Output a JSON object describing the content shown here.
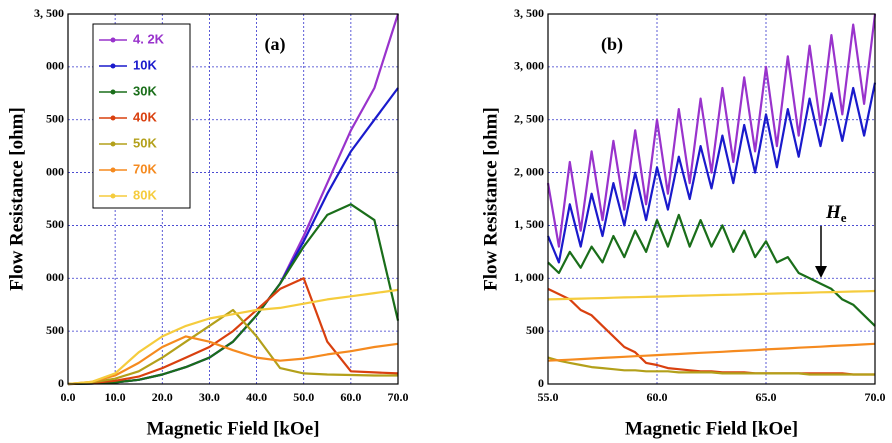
{
  "chart_data": [
    {
      "type": "line",
      "title": "(a)",
      "x_label": "Magnetic Field [kOe]",
      "y_label": "Flow Resistance [ohm]",
      "xlim": [
        0,
        70
      ],
      "ylim": [
        0,
        3500
      ],
      "grid": true,
      "legend": "upper left",
      "xticks": [
        {
          "value": 0,
          "label": "0.0"
        },
        {
          "value": 10,
          "label": "10.0"
        },
        {
          "value": 20,
          "label": "20.0"
        },
        {
          "value": 30,
          "label": "30.0"
        },
        {
          "value": 40,
          "label": "40.0"
        },
        {
          "value": 50,
          "label": "50.0"
        },
        {
          "value": 60,
          "label": "60.0"
        },
        {
          "value": 70,
          "label": "70.0"
        }
      ],
      "yticks": [
        0,
        500,
        {
          "value": 1000,
          "label": "000"
        },
        {
          "value": 1500,
          "label": "500"
        },
        {
          "value": 2000,
          "label": "000"
        },
        {
          "value": 2500,
          "label": "500"
        },
        {
          "value": 3000,
          "label": "000"
        },
        {
          "value": 3500,
          "label": "3, 500"
        }
      ],
      "x": [
        0,
        5,
        10,
        15,
        20,
        25,
        30,
        35,
        40,
        45,
        50,
        55,
        60,
        65,
        70
      ],
      "series": [
        {
          "name": "4. 2K",
          "color": "#9933cc",
          "values": [
            0,
            5,
            15,
            40,
            90,
            160,
            250,
            400,
            650,
            950,
            1400,
            1900,
            2400,
            2800,
            3500
          ]
        },
        {
          "name": "10K",
          "color": "#1a1acc",
          "values": [
            0,
            5,
            15,
            40,
            90,
            160,
            250,
            400,
            650,
            950,
            1350,
            1800,
            2200,
            2500,
            2800
          ]
        },
        {
          "name": "30K",
          "color": "#1a6e1a",
          "values": [
            0,
            5,
            15,
            40,
            90,
            160,
            250,
            400,
            650,
            950,
            1300,
            1600,
            1700,
            1550,
            600
          ]
        },
        {
          "name": "40K",
          "color": "#d9400f",
          "values": [
            0,
            10,
            30,
            70,
            150,
            250,
            350,
            500,
            700,
            900,
            1000,
            400,
            120,
            110,
            100
          ]
        },
        {
          "name": "50K",
          "color": "#b3a01a",
          "values": [
            0,
            15,
            50,
            120,
            250,
            400,
            550,
            700,
            450,
            150,
            100,
            90,
            85,
            80,
            80
          ]
        },
        {
          "name": "70K",
          "color": "#f58a1f",
          "values": [
            0,
            20,
            80,
            200,
            350,
            450,
            400,
            320,
            250,
            220,
            240,
            280,
            310,
            350,
            380
          ]
        },
        {
          "name": "80K",
          "color": "#f5cc3d",
          "values": [
            0,
            20,
            100,
            300,
            450,
            550,
            620,
            660,
            700,
            720,
            760,
            800,
            830,
            860,
            890
          ]
        }
      ]
    },
    {
      "type": "line",
      "title": "(b)",
      "x_label": "Magnetic Field [kOe]",
      "y_label": "Flow Resistance [ohm]",
      "xlim": [
        55,
        70
      ],
      "ylim": [
        0,
        3500
      ],
      "grid": true,
      "annotation": {
        "text": "H",
        "sub": "e"
      },
      "xticks": [
        {
          "value": 55,
          "label": "55.0"
        },
        {
          "value": 60,
          "label": "60.0"
        },
        {
          "value": 65,
          "label": "65.0"
        },
        {
          "value": 70,
          "label": "70.0"
        }
      ],
      "yticks": [
        0,
        500,
        {
          "value": 1000,
          "label": "1, 000"
        },
        {
          "value": 1500,
          "label": "1, 500"
        },
        {
          "value": 2000,
          "label": "2, 000"
        },
        {
          "value": 2500,
          "label": "2, 500"
        },
        {
          "value": 3000,
          "label": "3, 000"
        },
        {
          "value": 3500,
          "label": "3, 500"
        }
      ],
      "x": [
        55,
        55.5,
        56,
        56.5,
        57,
        57.5,
        58,
        58.5,
        59,
        59.5,
        60,
        60.5,
        61,
        61.5,
        62,
        62.5,
        63,
        63.5,
        64,
        64.5,
        65,
        65.5,
        66,
        66.5,
        67,
        67.5,
        68,
        68.5,
        69,
        69.5,
        70
      ],
      "series": [
        {
          "color": "#9933cc",
          "values": [
            1900,
            1300,
            2100,
            1450,
            2200,
            1550,
            2300,
            1650,
            2400,
            1700,
            2500,
            1800,
            2600,
            1900,
            2700,
            2000,
            2800,
            2100,
            2900,
            2200,
            3000,
            2250,
            3100,
            2350,
            3200,
            2450,
            3300,
            2550,
            3400,
            2650,
            3500
          ]
        },
        {
          "color": "#1a1acc",
          "values": [
            1400,
            1150,
            1700,
            1300,
            1800,
            1400,
            1900,
            1500,
            2000,
            1550,
            2050,
            1650,
            2150,
            1750,
            2250,
            1850,
            2350,
            1900,
            2450,
            2000,
            2550,
            2050,
            2600,
            2150,
            2700,
            2250,
            2750,
            2300,
            2800,
            2350,
            2850
          ]
        },
        {
          "color": "#1a6e1a",
          "values": [
            1150,
            1050,
            1250,
            1100,
            1300,
            1150,
            1400,
            1200,
            1450,
            1250,
            1550,
            1300,
            1600,
            1300,
            1550,
            1300,
            1500,
            1250,
            1450,
            1200,
            1350,
            1150,
            1200,
            1050,
            1000,
            950,
            900,
            800,
            750,
            650,
            550
          ]
        },
        {
          "color": "#d9400f",
          "values": [
            900,
            850,
            800,
            700,
            650,
            550,
            450,
            350,
            300,
            200,
            180,
            150,
            140,
            130,
            120,
            120,
            110,
            110,
            110,
            100,
            100,
            100,
            100,
            100,
            100,
            100,
            100,
            100,
            90,
            90,
            90
          ]
        },
        {
          "color": "#b3a01a",
          "values": [
            250,
            220,
            200,
            180,
            160,
            150,
            140,
            130,
            130,
            120,
            120,
            120,
            110,
            110,
            110,
            110,
            100,
            100,
            100,
            100,
            100,
            100,
            100,
            100,
            90,
            90,
            90,
            90,
            90,
            90,
            90
          ]
        },
        {
          "color": "#f58a1f",
          "values": [
            220,
            225,
            230,
            236,
            241,
            247,
            252,
            257,
            263,
            268,
            273,
            279,
            284,
            289,
            295,
            300,
            305,
            311,
            316,
            321,
            327,
            332,
            337,
            343,
            348,
            353,
            359,
            364,
            369,
            375,
            380
          ]
        },
        {
          "color": "#f5cc3d",
          "values": [
            800,
            803,
            805,
            808,
            811,
            813,
            816,
            819,
            821,
            824,
            827,
            829,
            832,
            835,
            837,
            840,
            843,
            845,
            848,
            851,
            853,
            856,
            859,
            861,
            864,
            867,
            869,
            872,
            875,
            877,
            880
          ]
        }
      ]
    }
  ]
}
